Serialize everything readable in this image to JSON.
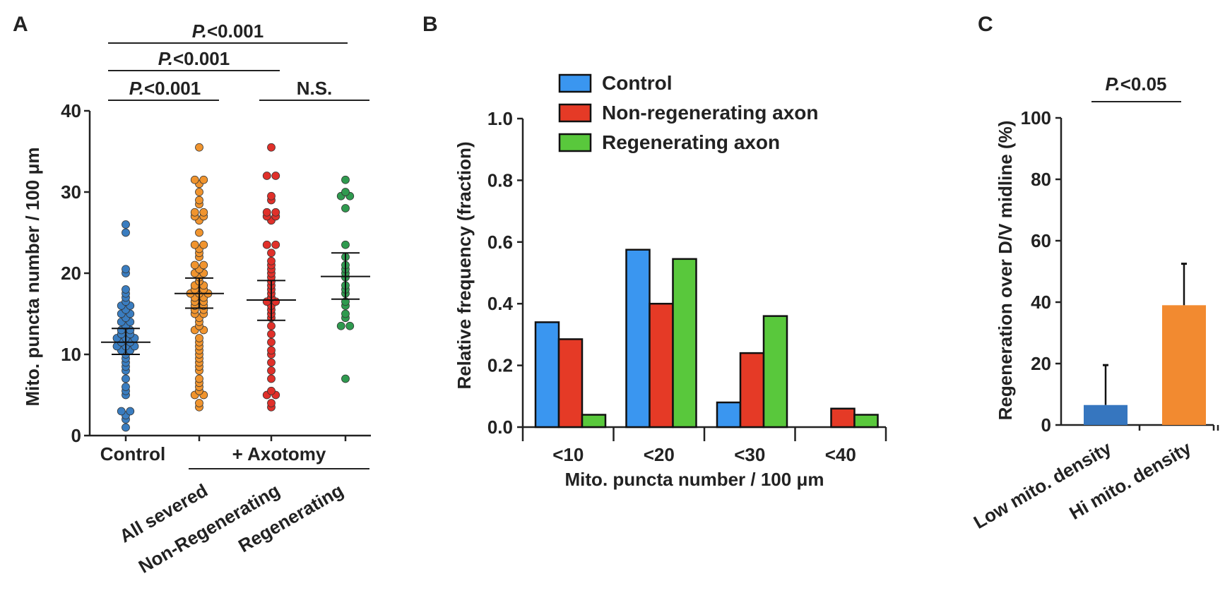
{
  "panels": [
    {
      "letter": "A"
    },
    {
      "letter": "B"
    },
    {
      "letter": "C"
    }
  ],
  "chart_data": [
    {
      "type": "scatter",
      "panel": "A",
      "ylabel": "Mito. puncta number  / 100 μm",
      "ylim": [
        0,
        40
      ],
      "yticks": [
        0,
        10,
        20,
        30,
        40
      ],
      "categories": [
        "Control",
        "All severed",
        "Non-Regenerating",
        "Regenerating"
      ],
      "group_label": "+ Axotomy",
      "colors": [
        "#3a7dc0",
        "#f0942e",
        "#e0302a",
        "#2f9a4f"
      ],
      "significance": [
        {
          "label_prefix": "P.",
          "label_suffix": "<0.001",
          "from": 0,
          "to": 3
        },
        {
          "label_prefix": "P.",
          "label_suffix": "<0.001",
          "from": 0,
          "to": 2
        },
        {
          "label_prefix": "P.",
          "label_suffix": "<0.001",
          "from": 0,
          "to": 1
        },
        {
          "label_prefix": "",
          "label_suffix": "N.S.",
          "from": 2,
          "to": 3
        }
      ],
      "series": [
        {
          "mean": 11.5,
          "sem_low": 10,
          "sem_high": 13.2,
          "values": [
            26,
            25,
            20.5,
            20,
            18,
            17.5,
            17,
            16.5,
            16,
            16,
            15.5,
            15,
            15,
            14.5,
            14,
            14,
            13.5,
            13,
            13,
            12.5,
            12.5,
            12,
            12,
            12,
            11.5,
            11.5,
            11,
            11,
            11,
            10.5,
            10.5,
            10,
            9.5,
            9,
            8.5,
            8,
            7,
            6,
            5.5,
            5,
            3,
            3,
            2.5,
            2,
            1
          ]
        },
        {
          "mean": 17.5,
          "sem_low": 15.7,
          "sem_high": 19.4,
          "values": [
            35.5,
            31.5,
            31.5,
            31,
            30,
            29,
            28.5,
            27.5,
            27.5,
            27,
            27,
            26.5,
            25,
            23.5,
            23.5,
            23,
            22.5,
            22,
            21,
            21,
            20.5,
            20,
            20,
            19.5,
            19,
            18.5,
            18.5,
            18,
            18,
            17.5,
            17.5,
            17.5,
            17,
            17,
            16.5,
            16.5,
            16,
            16,
            15.5,
            15.5,
            15,
            15,
            14.5,
            14,
            13.5,
            13,
            13,
            12,
            11.5,
            11,
            10.5,
            10,
            9.5,
            9,
            8.5,
            8,
            7,
            6.5,
            6,
            5.5,
            5,
            5,
            4,
            3.5
          ]
        },
        {
          "mean": 16.7,
          "sem_low": 14.2,
          "sem_high": 19.1,
          "values": [
            35.5,
            32,
            32,
            29.5,
            29,
            27.5,
            27.5,
            27,
            27,
            26.5,
            23.5,
            23.5,
            22.5,
            21.5,
            21,
            20.5,
            20,
            19.5,
            19,
            18.5,
            18,
            17.5,
            17,
            16.5,
            16.5,
            16,
            15.5,
            15,
            14.5,
            13.5,
            12.5,
            11.5,
            10.5,
            10,
            9,
            8,
            7,
            5.5,
            5,
            5,
            4,
            3.5
          ]
        },
        {
          "mean": 19.6,
          "sem_low": 16.8,
          "sem_high": 22.5,
          "values": [
            31.5,
            30,
            29.5,
            29.5,
            28,
            23.5,
            22,
            21,
            20.5,
            20,
            19.5,
            18.5,
            18,
            17.5,
            16.5,
            16,
            15,
            14.5,
            13.5,
            13.5,
            7
          ]
        }
      ]
    },
    {
      "type": "bar",
      "panel": "B",
      "xlabel": "Mito. puncta number / 100 μm",
      "ylabel": "Relative frequency (fraction)",
      "ylim": [
        0,
        1.0
      ],
      "yticks": [
        "0.0",
        "0.2",
        "0.4",
        "0.6",
        "0.8",
        "1.0"
      ],
      "categories": [
        "<10",
        "<20",
        "<30",
        "<40"
      ],
      "legend_position": "top",
      "series": [
        {
          "name": "Control",
          "color": "#3a96f0",
          "values": [
            0.34,
            0.575,
            0.08,
            0
          ]
        },
        {
          "name": "Non-regenerating axon",
          "color": "#e53a26",
          "values": [
            0.285,
            0.4,
            0.24,
            0.06
          ]
        },
        {
          "name": "Regenerating axon",
          "color": "#59c83c",
          "values": [
            0.04,
            0.545,
            0.36,
            0.04
          ]
        }
      ]
    },
    {
      "type": "bar",
      "panel": "C",
      "ylabel": "Regeneration over D/V midline (%)",
      "ylim": [
        0,
        100
      ],
      "yticks": [
        0,
        20,
        40,
        60,
        80,
        100
      ],
      "categories": [
        "Low mito. density",
        "Hi mito. density"
      ],
      "significance": {
        "label_prefix": "P.",
        "label_suffix": "<0.05"
      },
      "series": [
        {
          "colors": [
            "#3676bf",
            "#f28a30"
          ],
          "values": [
            6.5,
            39
          ],
          "error_upper": [
            19.5,
            52.5
          ]
        }
      ]
    }
  ]
}
